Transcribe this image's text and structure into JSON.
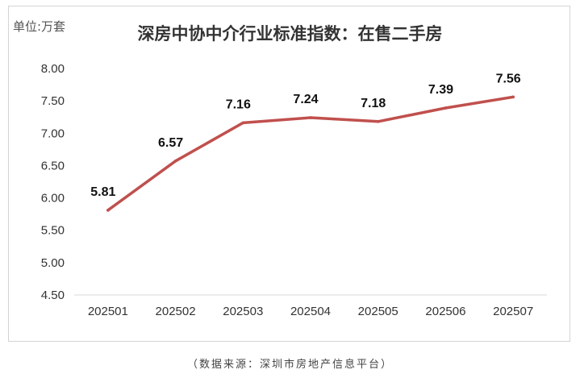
{
  "chart_data": {
    "type": "line",
    "title": "深房中协中介行业标准指数：在售二手房",
    "unit_label": "单位:万套",
    "source": "（数据来源：深圳市房地产信息平台）",
    "categories": [
      "202501",
      "202502",
      "202503",
      "202504",
      "202505",
      "202506",
      "202507"
    ],
    "series": [
      {
        "values": [
          5.81,
          6.57,
          7.16,
          7.24,
          7.18,
          7.39,
          7.56
        ],
        "color": "#c0504d"
      }
    ],
    "data_labels": [
      "5.81",
      "6.57",
      "7.16",
      "7.24",
      "7.18",
      "7.39",
      "7.56"
    ],
    "y_ticks": [
      "4.50",
      "5.00",
      "5.50",
      "6.00",
      "6.50",
      "7.00",
      "7.50",
      "8.00"
    ],
    "ylim": [
      4.5,
      8.0
    ],
    "grid": false,
    "axis_color": "#d9d9d9"
  }
}
